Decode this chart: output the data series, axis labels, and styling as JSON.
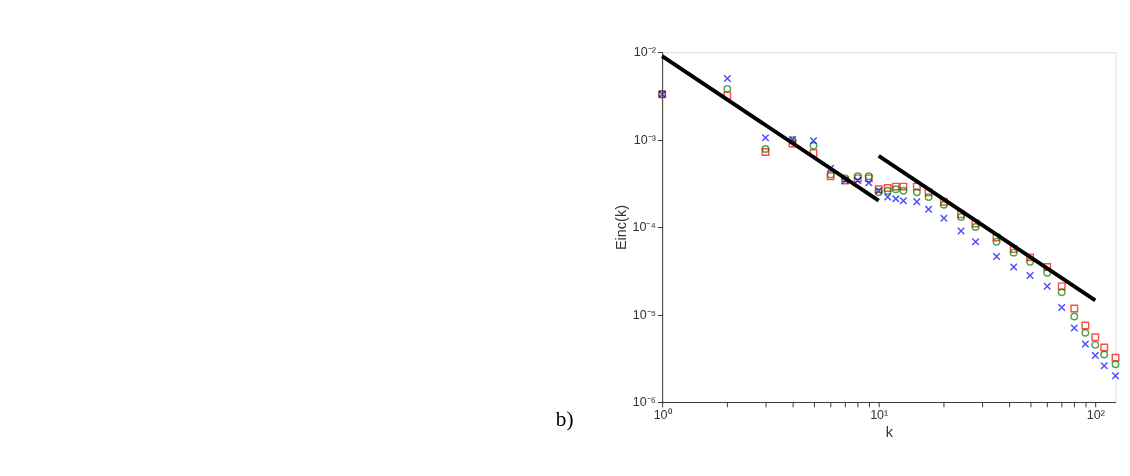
{
  "chart_data": {
    "type": "scatter",
    "xlabel": "k",
    "ylabel": "Einc(k)",
    "log": "xy",
    "grid": false,
    "annotations": [
      "b)"
    ],
    "xlim": [
      1,
      124
    ],
    "ylim": [
      1e-06,
      0.01
    ],
    "xticks": [
      {
        "value": 1,
        "label": "10⁰"
      },
      {
        "value": 2,
        "label": null
      },
      {
        "value": 3,
        "label": null
      },
      {
        "value": 4,
        "label": null
      },
      {
        "value": 5,
        "label": null
      },
      {
        "value": 6,
        "label": null
      },
      {
        "value": 7,
        "label": null
      },
      {
        "value": 8,
        "label": null
      },
      {
        "value": 9,
        "label": null
      },
      {
        "value": 10,
        "label": "10¹"
      },
      {
        "value": 20,
        "label": null
      },
      {
        "value": 30,
        "label": null
      },
      {
        "value": 40,
        "label": null
      },
      {
        "value": 50,
        "label": null
      },
      {
        "value": 60,
        "label": null
      },
      {
        "value": 70,
        "label": null
      },
      {
        "value": 80,
        "label": null
      },
      {
        "value": 90,
        "label": null
      },
      {
        "value": 100,
        "label": "10²"
      }
    ],
    "yticks": [
      {
        "value": 1e-06,
        "label": "10⁻⁶"
      },
      {
        "value": 1e-05,
        "label": "10⁻⁵"
      },
      {
        "value": 0.0001,
        "label": "10⁻⁴"
      },
      {
        "value": 0.001,
        "label": "10⁻³"
      },
      {
        "value": 0.01,
        "label": "10⁻²"
      }
    ],
    "series": [
      {
        "color": "#ff0000",
        "marker": "square",
        "x": [
          1,
          2,
          3,
          4,
          5,
          6,
          7,
          8,
          9,
          10,
          11,
          12,
          13,
          15,
          17,
          20,
          24,
          28,
          35,
          42,
          50,
          60,
          70,
          80,
          90,
          100,
          110,
          124
        ],
        "values": [
          0.0033,
          0.0032,
          0.00072,
          0.0009,
          0.0007,
          0.00038,
          0.00034,
          0.00036,
          0.00036,
          0.00027,
          0.00028,
          0.00029,
          0.00029,
          0.00029,
          0.00025,
          0.000195,
          0.00014,
          0.00011,
          7.6e-05,
          5.6e-05,
          4.5e-05,
          3.5e-05,
          2.1e-05,
          1.17e-05,
          7.5e-06,
          5.5e-06,
          4.2e-06,
          3.2e-06
        ]
      },
      {
        "color": "#008000",
        "marker": "circle",
        "x": [
          1,
          2,
          3,
          4,
          5,
          6,
          7,
          8,
          9,
          10,
          11,
          12,
          13,
          15,
          17,
          20,
          24,
          28,
          35,
          42,
          50,
          60,
          70,
          80,
          90,
          100,
          110,
          124
        ],
        "values": [
          0.0033,
          0.0038,
          0.00078,
          0.00098,
          0.00085,
          0.0004,
          0.00036,
          0.00038,
          0.00038,
          0.00025,
          0.00026,
          0.00027,
          0.00026,
          0.00025,
          0.00022,
          0.00018,
          0.00013,
          0.0001,
          6.8e-05,
          5.1e-05,
          4e-05,
          3e-05,
          1.8e-05,
          9.5e-06,
          6.2e-06,
          4.5e-06,
          3.5e-06,
          2.7e-06
        ]
      },
      {
        "color": "#0000ff",
        "marker": "cross",
        "x": [
          1,
          2,
          3,
          4,
          5,
          6,
          7,
          8,
          9,
          10,
          11,
          12,
          13,
          15,
          17,
          20,
          24,
          28,
          35,
          42,
          50,
          60,
          70,
          80,
          90,
          100,
          110,
          124
        ],
        "values": [
          0.0033,
          0.005,
          0.00105,
          0.001,
          0.00097,
          0.00047,
          0.00034,
          0.00034,
          0.00032,
          0.00026,
          0.00022,
          0.00021,
          0.0002,
          0.000195,
          0.00016,
          0.000126,
          9e-05,
          6.8e-05,
          4.6e-05,
          3.5e-05,
          2.8e-05,
          2.1e-05,
          1.2e-05,
          7e-06,
          4.6e-06,
          3.4e-06,
          2.6e-06,
          2e-06
        ]
      },
      {
        "type": "line",
        "color": "#000000",
        "x": [
          1,
          10
        ],
        "values": [
          0.009,
          0.0002
        ]
      },
      {
        "type": "line",
        "color": "#000000",
        "x": [
          10,
          100
        ],
        "values": [
          0.00065,
          1.45e-05
        ]
      }
    ]
  }
}
